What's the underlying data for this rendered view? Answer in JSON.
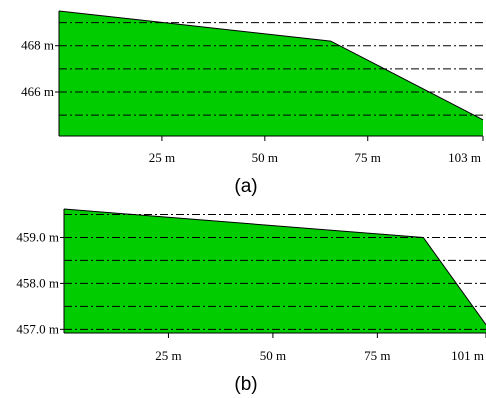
{
  "chart_data": [
    {
      "type": "area",
      "caption": "(a)",
      "x": [
        0,
        66,
        103
      ],
      "y": [
        469.5,
        468.2,
        464.8
      ],
      "ylim": [
        464.1,
        469.5
      ],
      "xlim": [
        0,
        103
      ],
      "xticks": [
        {
          "value": 25,
          "label": "25 m"
        },
        {
          "value": 50,
          "label": "50 m"
        },
        {
          "value": 75,
          "label": "75 m"
        },
        {
          "value": 103,
          "label": "103 m"
        }
      ],
      "yticks": [
        {
          "value": 468,
          "label": "468 m"
        },
        {
          "value": 466,
          "label": "466 m"
        }
      ],
      "grid_y": [
        469,
        468,
        467,
        466,
        465
      ],
      "grid_style": "dash-dot horizontal",
      "fill_color": "#00cc00",
      "edge_color": "#000000",
      "grid": true
    },
    {
      "type": "area",
      "caption": "(b)",
      "x": [
        0,
        86,
        101
      ],
      "y": [
        459.62,
        459.0,
        457.1
      ],
      "ylim": [
        456.92,
        459.62
      ],
      "xlim": [
        0,
        101
      ],
      "xticks": [
        {
          "value": 25,
          "label": "25 m"
        },
        {
          "value": 50,
          "label": "50 m"
        },
        {
          "value": 75,
          "label": "75 m"
        },
        {
          "value": 101,
          "label": "101 m"
        }
      ],
      "yticks": [
        {
          "value": 459.0,
          "label": "459.0 m"
        },
        {
          "value": 458.0,
          "label": "458.0 m"
        },
        {
          "value": 457.0,
          "label": "457.0 m"
        }
      ],
      "grid_y": [
        459.5,
        459.0,
        458.5,
        458.0,
        457.5,
        457.0
      ],
      "grid_style": "dash-dot horizontal",
      "fill_color": "#00cc00",
      "edge_color": "#000000",
      "grid": true
    }
  ]
}
